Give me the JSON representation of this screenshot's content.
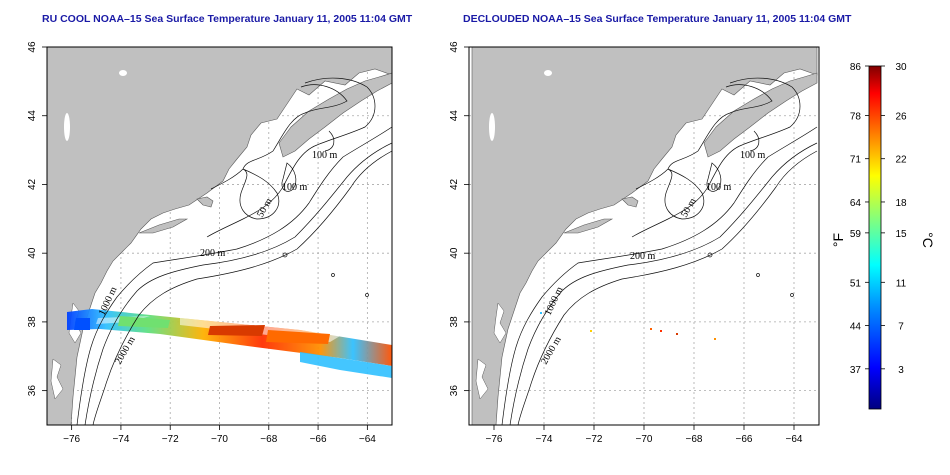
{
  "titles": {
    "left": "RU COOL NOAA–15 Sea Surface Temperature January 11, 2005 11:04 GMT",
    "right": "DECLOUDED NOAA–15 Sea Surface Temperature January 11, 2005 11:04 GMT"
  },
  "axes": {
    "longitude_ticks": [
      "−76",
      "−74",
      "−72",
      "−70",
      "−68",
      "−66",
      "−64"
    ],
    "latitude_ticks": [
      "46",
      "44",
      "42",
      "40",
      "38",
      "36"
    ],
    "lon_range": [
      -77,
      -63
    ],
    "lat_range": [
      35,
      46
    ]
  },
  "contour_labels": {
    "m100a": "100 m",
    "m100b": "100 m",
    "m50": "50 m",
    "m200": "200 m",
    "m1000": "1000 m",
    "m2000": "2000 m"
  },
  "colorbar": {
    "fahrenheit_unit": "°F",
    "celsius_unit": "°C",
    "fahrenheit_ticks": [
      "86",
      "78",
      "71",
      "64",
      "59",
      "51",
      "44",
      "37"
    ],
    "celsius_ticks": [
      "30",
      "26",
      "22",
      "18",
      "15",
      "11",
      "7",
      "3"
    ],
    "colors": [
      "#000080",
      "#0000ff",
      "#0080ff",
      "#00ffff",
      "#80ff80",
      "#ffff00",
      "#ff8000",
      "#ff0000",
      "#800000"
    ]
  },
  "colors": {
    "land": "#c0c0c0",
    "title": "#1a1aa6",
    "grid": "#aaaaaa"
  }
}
